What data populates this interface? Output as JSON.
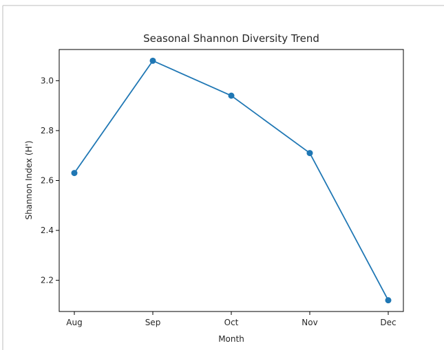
{
  "chart_data": {
    "type": "line",
    "title": "Seasonal Shannon Diversity Trend",
    "xlabel": "Month",
    "ylabel": "Shannon Index (H')",
    "categories": [
      "Aug",
      "Sep",
      "Oct",
      "Nov",
      "Dec"
    ],
    "series": [
      {
        "values": [
          2.63,
          3.08,
          2.94,
          2.71,
          2.12
        ],
        "color": "#1f77b4"
      }
    ],
    "ylim": [
      2.075,
      3.125
    ],
    "yticks": [
      2.2,
      2.4,
      2.6,
      2.8,
      3.0
    ],
    "ytick_labels": [
      "2.2",
      "2.4",
      "2.6",
      "2.8",
      "3.0"
    ],
    "grid": false,
    "legend": "none"
  }
}
